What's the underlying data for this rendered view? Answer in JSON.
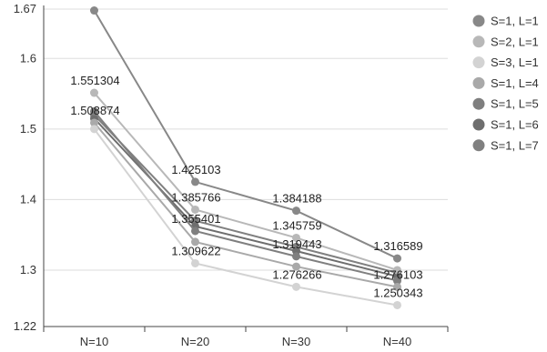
{
  "chart_data": {
    "type": "line",
    "title": "",
    "xlabel": "",
    "ylabel": "",
    "x": [
      "N=10",
      "N=20",
      "N=30",
      "N=40"
    ],
    "ylim": [
      1.22,
      1.67
    ],
    "yticks": [
      "1.22",
      "1.3",
      "1.4",
      "1.5",
      "1.6",
      "1.67"
    ],
    "grid": true,
    "legend_position": "right",
    "series": [
      {
        "name": "S=1, L=1",
        "color": "#888888",
        "values": [
          1.668,
          1.425103,
          1.384188,
          1.316589
        ]
      },
      {
        "name": "S=2, L=1",
        "color": "#b8b8b8",
        "values": [
          1.551304,
          1.385766,
          1.345759,
          1.3
        ]
      },
      {
        "name": "S=3, L=1",
        "color": "#d3d3d3",
        "values": [
          1.5,
          1.309622,
          1.276266,
          1.250343
        ]
      },
      {
        "name": "S=1, L=4",
        "color": "#a9a9a9",
        "values": [
          1.508874,
          1.34,
          1.305,
          1.276103
        ]
      },
      {
        "name": "S=1, L=5",
        "color": "#7f7f7f",
        "values": [
          1.525,
          1.355401,
          1.319443,
          1.285
        ]
      },
      {
        "name": "S=1, L=6",
        "color": "#6e6e6e",
        "values": [
          1.515,
          1.362,
          1.327,
          1.291
        ]
      },
      {
        "name": "S=1, L=7",
        "color": "#808080",
        "values": [
          1.52,
          1.37,
          1.333,
          1.296
        ]
      }
    ],
    "labels": [
      {
        "text": "1.551304",
        "series": 1,
        "point": 0
      },
      {
        "text": "1.508874",
        "series": 3,
        "point": 0
      },
      {
        "text": "1.425103",
        "series": 0,
        "point": 1
      },
      {
        "text": "1.385766",
        "series": 1,
        "point": 1
      },
      {
        "text": "1.355401",
        "series": 4,
        "point": 1
      },
      {
        "text": "1.309622",
        "series": 2,
        "point": 1
      },
      {
        "text": "1.384188",
        "series": 0,
        "point": 2
      },
      {
        "text": "1.345759",
        "series": 1,
        "point": 2
      },
      {
        "text": "1.319443",
        "series": 4,
        "point": 2
      },
      {
        "text": "1.276266",
        "series": 2,
        "point": 2
      },
      {
        "text": "1.316589",
        "series": 0,
        "point": 3
      },
      {
        "text": "1.276103",
        "series": 3,
        "point": 3
      },
      {
        "text": "1.250343",
        "series": 2,
        "point": 3
      }
    ]
  }
}
